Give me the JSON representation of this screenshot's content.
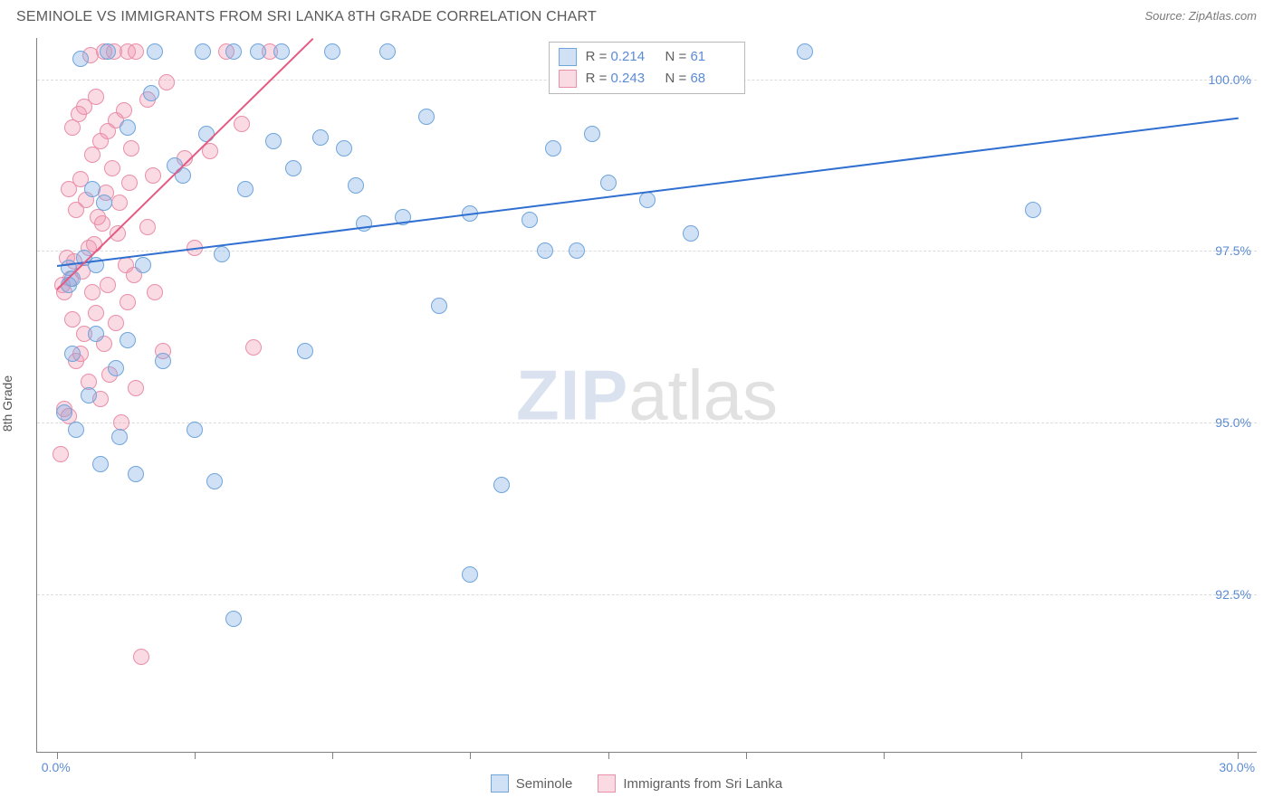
{
  "header": {
    "title": "SEMINOLE VS IMMIGRANTS FROM SRI LANKA 8TH GRADE CORRELATION CHART",
    "source": "Source: ZipAtlas.com"
  },
  "chart": {
    "type": "scatter",
    "background_color": "#ffffff",
    "grid_color": "#dcdcdc",
    "axis_color": "#808080",
    "tick_label_color": "#5b8bd4",
    "axis_label_color": "#555555",
    "ylabel": "8th Grade",
    "label_fontsize": 14,
    "xlim": [
      -0.5,
      30.5
    ],
    "ylim": [
      90.2,
      100.6
    ],
    "xticks": [
      0,
      3.5,
      7,
      10.5,
      14,
      17.5,
      21,
      24.5,
      30
    ],
    "xtick_labels": {
      "0": "0.0%",
      "30": "30.0%"
    },
    "yticks": [
      92.5,
      95.0,
      97.5,
      100.0
    ],
    "ytick_labels": [
      "92.5%",
      "95.0%",
      "97.5%",
      "100.0%"
    ],
    "marker_radius": 9,
    "marker_stroke_width": 1,
    "trend_line_width": 2,
    "series": [
      {
        "name": "Seminole",
        "fill": "rgba(120,170,230,0.35)",
        "stroke": "#6fa5db",
        "r_value": "0.214",
        "n_value": "61",
        "trend": {
          "x1": 0,
          "y1": 97.3,
          "x2": 30,
          "y2": 99.45,
          "color": "#2f6fd0"
        },
        "points": [
          [
            0.2,
            95.15
          ],
          [
            0.3,
            97.0
          ],
          [
            0.3,
            97.25
          ],
          [
            0.4,
            97.1
          ],
          [
            0.4,
            96.0
          ],
          [
            0.5,
            94.9
          ],
          [
            0.6,
            100.3
          ],
          [
            0.7,
            97.4
          ],
          [
            0.8,
            95.4
          ],
          [
            0.9,
            98.4
          ],
          [
            1.0,
            96.3
          ],
          [
            1.0,
            97.3
          ],
          [
            1.1,
            94.4
          ],
          [
            1.2,
            98.2
          ],
          [
            1.3,
            100.4
          ],
          [
            1.5,
            95.8
          ],
          [
            1.6,
            94.8
          ],
          [
            1.8,
            96.2
          ],
          [
            1.8,
            99.3
          ],
          [
            2.0,
            94.25
          ],
          [
            2.2,
            97.3
          ],
          [
            2.4,
            99.8
          ],
          [
            2.5,
            100.4
          ],
          [
            2.7,
            95.9
          ],
          [
            3.0,
            98.75
          ],
          [
            3.2,
            98.6
          ],
          [
            3.5,
            94.9
          ],
          [
            3.7,
            100.4
          ],
          [
            3.8,
            99.2
          ],
          [
            4.0,
            94.15
          ],
          [
            4.2,
            97.45
          ],
          [
            4.5,
            100.4
          ],
          [
            4.5,
            92.15
          ],
          [
            4.8,
            98.4
          ],
          [
            5.1,
            100.4
          ],
          [
            5.5,
            99.1
          ],
          [
            5.7,
            100.4
          ],
          [
            6.0,
            98.7
          ],
          [
            6.3,
            96.05
          ],
          [
            6.7,
            99.15
          ],
          [
            7.0,
            100.4
          ],
          [
            7.3,
            99.0
          ],
          [
            7.6,
            98.45
          ],
          [
            7.8,
            97.9
          ],
          [
            8.4,
            100.4
          ],
          [
            8.8,
            98.0
          ],
          [
            9.4,
            99.45
          ],
          [
            9.7,
            96.7
          ],
          [
            10.5,
            98.05
          ],
          [
            10.5,
            92.8
          ],
          [
            11.3,
            94.1
          ],
          [
            12.0,
            97.95
          ],
          [
            12.4,
            97.5
          ],
          [
            12.6,
            99.0
          ],
          [
            13.2,
            97.5
          ],
          [
            13.6,
            99.2
          ],
          [
            14.0,
            98.5
          ],
          [
            15.0,
            98.25
          ],
          [
            16.1,
            97.75
          ],
          [
            19.0,
            100.4
          ],
          [
            24.8,
            98.1
          ]
        ]
      },
      {
        "name": "Immigrants from Sri Lanka",
        "fill": "rgba(240,150,175,0.35)",
        "stroke": "#e98fa8",
        "r_value": "0.243",
        "n_value": "68",
        "trend": {
          "x1": 0,
          "y1": 96.95,
          "x2": 6.5,
          "y2": 100.6,
          "color": "#e45a82"
        },
        "points": [
          [
            0.1,
            94.55
          ],
          [
            0.15,
            97.0
          ],
          [
            0.2,
            96.9
          ],
          [
            0.2,
            95.2
          ],
          [
            0.25,
            97.4
          ],
          [
            0.3,
            95.1
          ],
          [
            0.3,
            98.4
          ],
          [
            0.35,
            97.1
          ],
          [
            0.4,
            99.3
          ],
          [
            0.4,
            96.5
          ],
          [
            0.45,
            97.35
          ],
          [
            0.5,
            98.1
          ],
          [
            0.5,
            95.9
          ],
          [
            0.55,
            99.5
          ],
          [
            0.6,
            96.0
          ],
          [
            0.6,
            98.55
          ],
          [
            0.65,
            97.2
          ],
          [
            0.7,
            99.6
          ],
          [
            0.7,
            96.3
          ],
          [
            0.75,
            98.25
          ],
          [
            0.8,
            97.55
          ],
          [
            0.8,
            95.6
          ],
          [
            0.85,
            100.35
          ],
          [
            0.9,
            96.9
          ],
          [
            0.9,
            98.9
          ],
          [
            0.95,
            97.6
          ],
          [
            1.0,
            99.75
          ],
          [
            1.0,
            96.6
          ],
          [
            1.05,
            98.0
          ],
          [
            1.1,
            99.1
          ],
          [
            1.1,
            95.35
          ],
          [
            1.15,
            97.9
          ],
          [
            1.2,
            100.4
          ],
          [
            1.2,
            96.15
          ],
          [
            1.25,
            98.35
          ],
          [
            1.3,
            99.25
          ],
          [
            1.3,
            97.0
          ],
          [
            1.35,
            95.7
          ],
          [
            1.4,
            98.7
          ],
          [
            1.45,
            100.4
          ],
          [
            1.5,
            96.45
          ],
          [
            1.5,
            99.4
          ],
          [
            1.55,
            97.75
          ],
          [
            1.6,
            98.2
          ],
          [
            1.65,
            95.0
          ],
          [
            1.7,
            99.55
          ],
          [
            1.75,
            97.3
          ],
          [
            1.8,
            100.4
          ],
          [
            1.8,
            96.75
          ],
          [
            1.85,
            98.5
          ],
          [
            1.9,
            99.0
          ],
          [
            1.95,
            97.15
          ],
          [
            2.0,
            100.4
          ],
          [
            2.0,
            95.5
          ],
          [
            2.15,
            91.6
          ],
          [
            2.3,
            99.7
          ],
          [
            2.3,
            97.85
          ],
          [
            2.45,
            98.6
          ],
          [
            2.5,
            96.9
          ],
          [
            2.7,
            96.05
          ],
          [
            2.8,
            99.95
          ],
          [
            3.25,
            98.85
          ],
          [
            3.5,
            97.55
          ],
          [
            3.9,
            98.95
          ],
          [
            4.3,
            100.4
          ],
          [
            4.7,
            99.35
          ],
          [
            5.0,
            96.1
          ],
          [
            5.4,
            100.4
          ]
        ]
      }
    ],
    "watermark": {
      "part1": "ZIP",
      "part2": "atlas"
    },
    "legend_labels": {
      "r": "R  =",
      "n": "N  ="
    },
    "bottom_legend": [
      {
        "label": "Seminole",
        "fill": "rgba(120,170,230,0.35)",
        "stroke": "#6fa5db"
      },
      {
        "label": "Immigrants from Sri Lanka",
        "fill": "rgba(240,150,175,0.35)",
        "stroke": "#e98fa8"
      }
    ]
  }
}
